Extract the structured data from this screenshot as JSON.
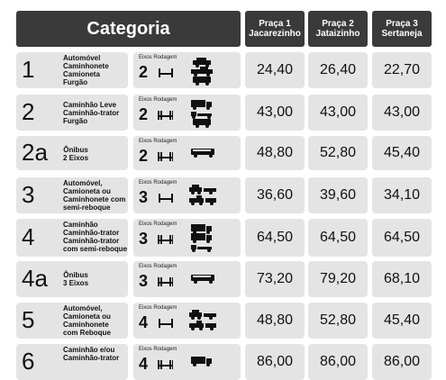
{
  "header": {
    "categoria": "Categoria",
    "pracas": [
      "Praça 1\nJacarezinho",
      "Praça 2\nJataizinho",
      "Praça 3\nSertaneja"
    ]
  },
  "axle_labels": {
    "eixos": "Eixos",
    "rodagem": "Rodagem"
  },
  "rows": [
    {
      "code": "1",
      "desc": "Automóvel\nCaminhonete\nCamioneta\nFurgão",
      "eixos": "2",
      "axle": "single",
      "vehicles": [
        "car",
        "pickup",
        "van"
      ],
      "prices": [
        "24,40",
        "26,40",
        "22,70"
      ]
    },
    {
      "code": "2",
      "desc": "Caminhão Leve\nCaminhão-trator\nFurgão",
      "eixos": "2",
      "axle": "dual",
      "vehicles": [
        "truck",
        "tractor",
        "van"
      ],
      "prices": [
        "43,00",
        "43,00",
        "43,00"
      ]
    },
    {
      "code": "2a",
      "desc": "Ônibus\n2 Eixos",
      "eixos": "2",
      "axle": "dual",
      "vehicles": [
        "bus"
      ],
      "prices": [
        "48,80",
        "52,80",
        "45,40"
      ]
    },
    {
      "code": "3",
      "desc": "Automóvel,\nCamioneta ou\nCaminhonete com\nsemi-reboque",
      "eixos": "3",
      "axle": "single",
      "vehicles": [
        "car-trailer",
        "pickup-trailer"
      ],
      "prices": [
        "36,60",
        "39,60",
        "34,10"
      ]
    },
    {
      "code": "4",
      "desc": "Caminhão\nCaminhão-trator\nCaminhão-trator\ncom semi-reboque",
      "eixos": "3",
      "axle": "dual",
      "vehicles": [
        "truck",
        "truck",
        "tractor"
      ],
      "prices": [
        "64,50",
        "64,50",
        "64,50"
      ]
    },
    {
      "code": "4a",
      "desc": "Ônibus\n3 Eixos",
      "eixos": "3",
      "axle": "dual",
      "vehicles": [
        "bus"
      ],
      "prices": [
        "73,20",
        "79,20",
        "68,10"
      ]
    },
    {
      "code": "5",
      "desc": "Automóvel,\nCamioneta ou\nCaminhonete\ncom Reboque",
      "eixos": "4",
      "axle": "single",
      "vehicles": [
        "car-trailer",
        "pickup-trailer"
      ],
      "prices": [
        "48,80",
        "52,80",
        "45,40"
      ]
    },
    {
      "code": "6",
      "desc": "Caminhão e/ou\nCaminhão-trator",
      "eixos": "4",
      "axle": "dual",
      "vehicles": [
        "truck"
      ],
      "prices": [
        "86,00",
        "86,00",
        "86,00"
      ]
    }
  ],
  "colors": {
    "header_bg": "#3a3a3a",
    "cell_bg": "#e4e4e4",
    "text": "#111111"
  }
}
